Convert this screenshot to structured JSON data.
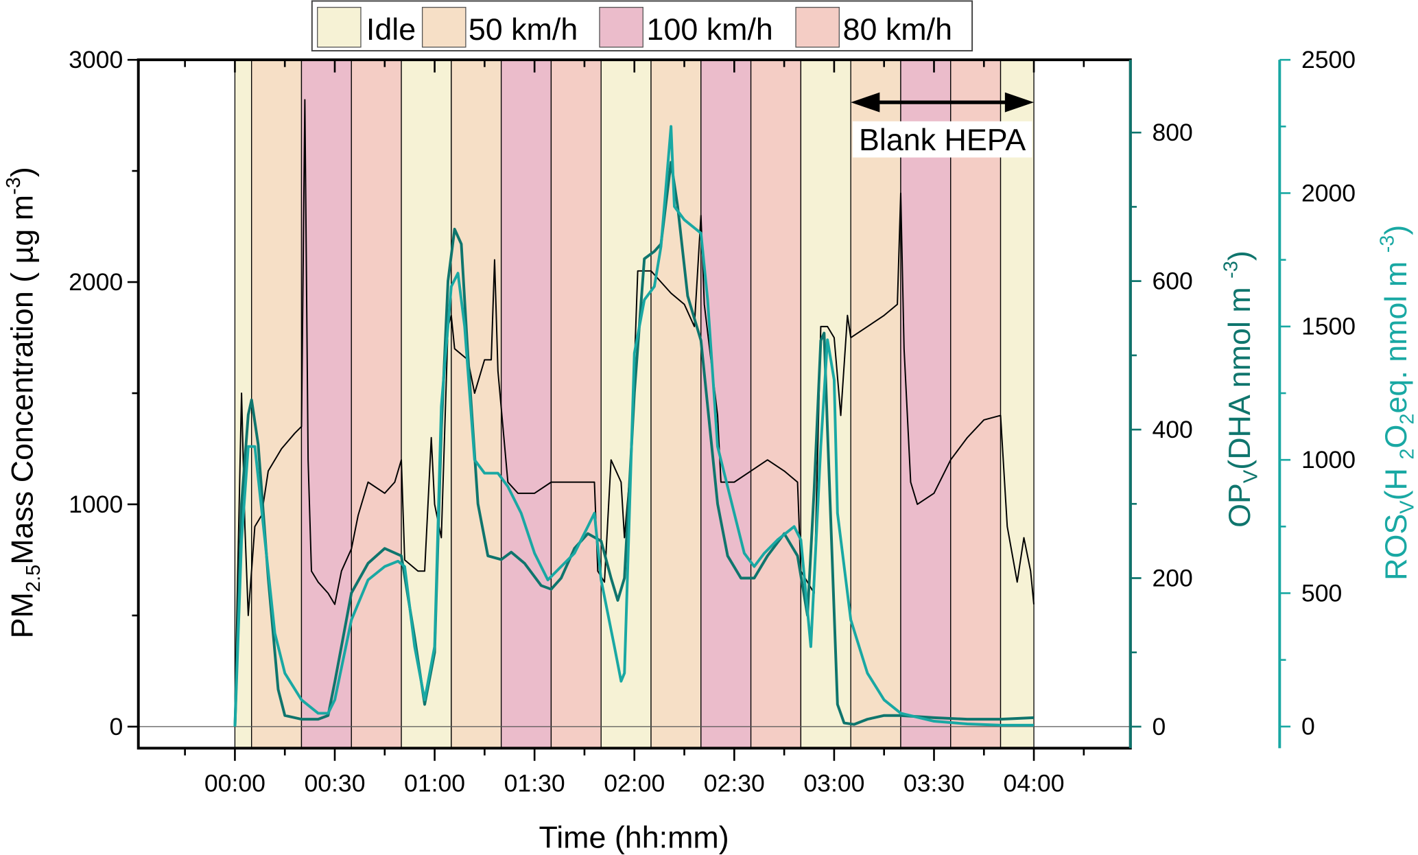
{
  "chart_data": {
    "type": "line",
    "xlabel": "Time (hh:mm)",
    "x_unit": "minutes",
    "xlim": [
      -29,
      269
    ],
    "x_ticks": [
      0,
      30,
      60,
      90,
      120,
      150,
      180,
      210,
      240
    ],
    "x_tick_labels": [
      "00:00",
      "00:30",
      "01:00",
      "01:30",
      "02:00",
      "02:30",
      "03:00",
      "03:30",
      "04:00"
    ],
    "legend": {
      "placement": "top",
      "entries": [
        {
          "label": "Idle",
          "color": "#f6f2d5"
        },
        {
          "label": "50 km/h",
          "color": "#f6dfc6"
        },
        {
          "label": "100 km/h",
          "color": "#ebbccb"
        },
        {
          "label": "80 km/h",
          "color": "#f4cdc5"
        }
      ]
    },
    "bands": [
      {
        "start": 0,
        "end": 5,
        "type": 0
      },
      {
        "start": 5,
        "end": 20,
        "type": 1
      },
      {
        "start": 20,
        "end": 35,
        "type": 2
      },
      {
        "start": 35,
        "end": 50,
        "type": 3
      },
      {
        "start": 50,
        "end": 65,
        "type": 0
      },
      {
        "start": 65,
        "end": 80,
        "type": 1
      },
      {
        "start": 80,
        "end": 95,
        "type": 2
      },
      {
        "start": 95,
        "end": 110,
        "type": 3
      },
      {
        "start": 110,
        "end": 125,
        "type": 0
      },
      {
        "start": 125,
        "end": 140,
        "type": 1
      },
      {
        "start": 140,
        "end": 155,
        "type": 2
      },
      {
        "start": 155,
        "end": 170,
        "type": 3
      },
      {
        "start": 170,
        "end": 185,
        "type": 0
      },
      {
        "start": 185,
        "end": 200,
        "type": 1
      },
      {
        "start": 200,
        "end": 215,
        "type": 2
      },
      {
        "start": 215,
        "end": 230,
        "type": 3
      },
      {
        "start": 230,
        "end": 240,
        "type": 0
      }
    ],
    "annotation": {
      "text": "Blank HEPA",
      "start": 185,
      "end": 240
    },
    "axes": {
      "left": {
        "label_main": "PM",
        "label_sub": "2.5",
        "label_rest": "Mass Concentration ( µg m",
        "label_sup": "-3",
        "label_end": ")",
        "ylim": [
          -97,
          3000
        ],
        "ticks": [
          0,
          1000,
          2000,
          3000
        ],
        "color": "#000000"
      },
      "right1": {
        "label_main": "OP",
        "label_sub": "V",
        "label_rest": "(DHA nmol m ",
        "label_sup": "-3",
        "label_end": ")",
        "ylim": [
          -29,
          898
        ],
        "ticks": [
          0,
          200,
          400,
          600,
          800
        ],
        "color": "#0f756d"
      },
      "right2": {
        "label_main": "ROS",
        "label_sub": "V",
        "label_rest": "(H ",
        "label_sub2": "2",
        "label_rest2": "O",
        "label_sub3": "2",
        "label_rest3": "eq. nmol m ",
        "label_sup": "-3",
        "label_end": ")",
        "ylim": [
          -81,
          2500
        ],
        "ticks": [
          0,
          500,
          1000,
          1500,
          2000,
          2500
        ],
        "color": "#19a8a3"
      }
    },
    "series": [
      {
        "name": "PM2.5",
        "axis": "left",
        "color": "#000000",
        "x": [
          0,
          2,
          3,
          4,
          6,
          8,
          10,
          14,
          18,
          20,
          21,
          22,
          23,
          25,
          28,
          30,
          32,
          35,
          37,
          40,
          45,
          48,
          50,
          51,
          55,
          57,
          59,
          60,
          62,
          64,
          65,
          66,
          70,
          72,
          75,
          77,
          78,
          79,
          82,
          85,
          90,
          95,
          100,
          105,
          108,
          109,
          111,
          113,
          116,
          117,
          119,
          121,
          125,
          128,
          131,
          135,
          138,
          140,
          141,
          145,
          146,
          150,
          155,
          160,
          165,
          169,
          170,
          174,
          176,
          178,
          180,
          182,
          184,
          185,
          190,
          195,
          199,
          200,
          201,
          203,
          205,
          210,
          215,
          220,
          225,
          230,
          232,
          235,
          237,
          239,
          240
        ],
        "y": [
          100,
          1500,
          900,
          500,
          900,
          950,
          1150,
          1250,
          1320,
          1350,
          2820,
          1200,
          700,
          650,
          600,
          550,
          700,
          800,
          950,
          1100,
          1050,
          1100,
          1200,
          750,
          700,
          700,
          1300,
          1000,
          850,
          1800,
          1850,
          1700,
          1650,
          1500,
          1650,
          1650,
          2100,
          1600,
          1100,
          1050,
          1050,
          1100,
          1100,
          1100,
          1100,
          700,
          650,
          1200,
          1100,
          850,
          1200,
          2050,
          2050,
          2000,
          1950,
          1900,
          1800,
          2300,
          1900,
          1400,
          1100,
          1100,
          1150,
          1200,
          1150,
          1100,
          700,
          600,
          1800,
          1800,
          1750,
          1400,
          1850,
          1750,
          1800,
          1850,
          1900,
          2400,
          1700,
          1100,
          1000,
          1050,
          1200,
          1300,
          1380,
          1400,
          900,
          650,
          850,
          700,
          550
        ]
      },
      {
        "name": "OPv",
        "axis": "right1",
        "color": "#0f756d",
        "x": [
          0,
          2,
          4,
          5,
          7,
          10,
          13,
          15,
          20,
          25,
          28,
          30,
          35,
          40,
          45,
          50,
          54,
          57,
          60,
          62,
          64,
          66,
          68,
          70,
          73,
          76,
          80,
          83,
          87,
          92,
          95,
          98,
          102,
          106,
          110,
          113,
          115,
          117,
          120,
          123,
          126,
          128,
          131,
          133,
          136,
          140,
          145,
          148,
          152,
          156,
          160,
          165,
          169,
          172,
          174,
          176,
          177,
          178,
          181,
          183,
          186,
          190,
          195,
          200,
          210,
          220,
          230,
          240
        ],
        "y": [
          0,
          300,
          420,
          440,
          380,
          200,
          50,
          15,
          10,
          10,
          15,
          60,
          180,
          220,
          240,
          230,
          120,
          30,
          100,
          400,
          600,
          670,
          650,
          500,
          300,
          230,
          225,
          235,
          220,
          190,
          185,
          200,
          240,
          260,
          250,
          200,
          170,
          200,
          450,
          630,
          640,
          650,
          760,
          700,
          580,
          520,
          300,
          230,
          200,
          200,
          230,
          260,
          230,
          150,
          320,
          520,
          530,
          400,
          30,
          5,
          3,
          10,
          15,
          15,
          12,
          10,
          10,
          12
        ]
      },
      {
        "name": "ROSv",
        "axis": "right2",
        "color": "#19a8a3",
        "x": [
          0,
          2,
          4,
          6,
          9,
          12,
          15,
          20,
          25,
          28,
          30,
          35,
          40,
          45,
          49,
          51,
          54,
          57,
          60,
          62,
          65,
          67,
          69,
          72,
          75,
          79,
          82,
          86,
          90,
          94,
          98,
          102,
          104,
          106,
          108,
          110,
          114,
          116,
          117,
          120,
          123,
          126,
          128,
          131,
          132,
          135,
          140,
          142,
          145,
          150,
          153,
          156,
          159,
          163,
          168,
          170,
          173,
          176,
          178,
          180,
          181,
          185,
          190,
          195,
          200,
          210,
          220,
          230,
          240
        ],
        "y": [
          0,
          700,
          1050,
          1050,
          700,
          350,
          200,
          100,
          50,
          50,
          100,
          400,
          550,
          600,
          620,
          600,
          300,
          100,
          300,
          1200,
          1650,
          1700,
          1500,
          1000,
          950,
          950,
          900,
          800,
          650,
          550,
          600,
          650,
          700,
          750,
          800,
          550,
          300,
          170,
          200,
          1400,
          1600,
          1650,
          1800,
          2250,
          1950,
          1900,
          1850,
          1600,
          1050,
          800,
          650,
          600,
          650,
          700,
          750,
          700,
          300,
          1050,
          1450,
          1300,
          800,
          400,
          200,
          100,
          50,
          20,
          10,
          5,
          5
        ]
      }
    ]
  }
}
